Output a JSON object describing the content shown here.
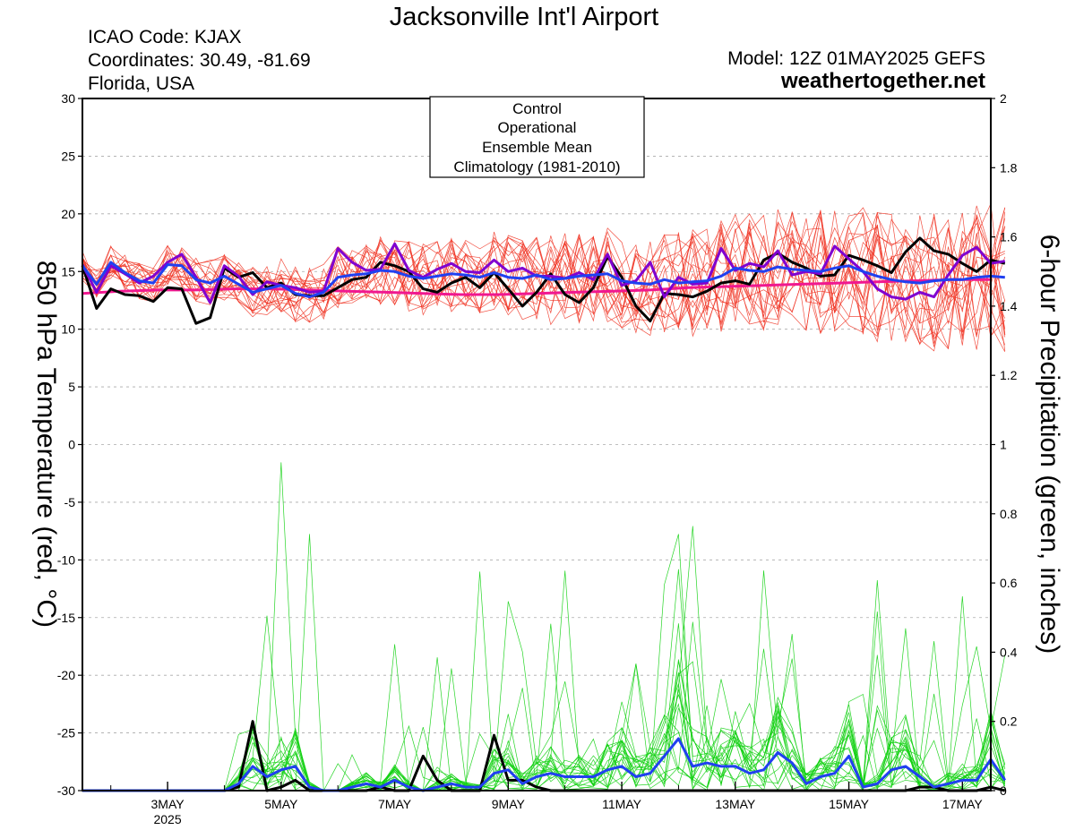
{
  "header": {
    "title": "Jacksonville Int'l Airport",
    "icao": "ICAO Code: KJAX",
    "coords": "Coordinates: 30.49, -81.69",
    "region": "Florida, USA",
    "model": "Model: 12Z 01MAY2025 GEFS",
    "site": "weathertogether.net"
  },
  "colors": {
    "control": "#000000",
    "operational": "#8000d0",
    "ensemble_mean": "#2040f0",
    "climatology": "#f01890",
    "members_temp": "#f03020",
    "members_precip": "#10d010",
    "site": "#1a9cf0"
  },
  "chart_data": {
    "type": "line",
    "title": "Jacksonville Int'l Airport",
    "ylabel": "850 hPa Temperature (red, °C)",
    "y2label": "6-hour Precipitation (green, inches)",
    "ylim": [
      -30,
      30
    ],
    "y2lim": [
      0,
      2
    ],
    "yticks": [
      30,
      25,
      20,
      15,
      10,
      5,
      0,
      -5,
      -10,
      -15,
      -20,
      -25,
      -30
    ],
    "y2ticks": [
      2,
      1.8,
      1.6,
      1.4,
      1.2,
      1,
      0.8,
      0.6,
      0.4,
      0.2,
      0
    ],
    "xlim": [
      1.5,
      17.5
    ],
    "xticks": [
      {
        "day": 3,
        "label": "3MAY",
        "sub": "2025"
      },
      {
        "day": 5,
        "label": "5MAY"
      },
      {
        "day": 7,
        "label": "7MAY"
      },
      {
        "day": 9,
        "label": "9MAY"
      },
      {
        "day": 11,
        "label": "11MAY"
      },
      {
        "day": 13,
        "label": "13MAY"
      },
      {
        "day": 15,
        "label": "15MAY"
      },
      {
        "day": 17,
        "label": "17MAY"
      }
    ],
    "grid": true,
    "legend": {
      "placement": "top-center",
      "entries": [
        "Control",
        "Operational",
        "Ensemble Mean",
        "Climatology (1981-2010)"
      ]
    },
    "x_start_day": 1.5,
    "x_step_days": 0.25,
    "series": [
      {
        "name": "Control",
        "axis": "temp",
        "values": [
          15.5,
          11.8,
          13.5,
          13.0,
          12.9,
          12.4,
          13.6,
          13.5,
          10.5,
          11.0,
          15.3,
          14.5,
          14.9,
          13.6,
          14.0,
          13.0,
          12.9,
          12.9,
          13.6,
          14.3,
          14.5,
          15.8,
          15.5,
          15.0,
          13.5,
          13.2,
          14.0,
          14.5,
          13.6,
          14.9,
          13.5,
          12.0,
          13.2,
          14.8,
          13.0,
          12.3,
          13.6,
          16.3,
          14.5,
          12.0,
          10.7,
          13.1,
          13.0,
          12.8,
          13.3,
          14.0,
          14.2,
          13.9,
          16.0,
          16.6,
          15.8,
          15.3,
          14.6,
          14.7,
          16.4,
          16.0,
          15.5,
          14.9,
          16.7,
          17.9,
          16.8,
          16.5,
          15.7,
          15.0,
          16.0,
          15.7
        ]
      },
      {
        "name": "Operational",
        "axis": "temp",
        "values": [
          15.6,
          13.2,
          15.5,
          14.8,
          14.0,
          14.6,
          15.8,
          16.5,
          14.5,
          12.3,
          15.5,
          14.6,
          13.0,
          14.1,
          13.8,
          13.6,
          13.2,
          13.3,
          17.0,
          15.8,
          15.1,
          15.2,
          17.4,
          15.1,
          14.5,
          15.2,
          15.7,
          15.0,
          14.9,
          16.0,
          15.0,
          15.3,
          14.6,
          14.6,
          14.4,
          14.9,
          14.3,
          16.5,
          13.8,
          14.2,
          15.8,
          12.8,
          14.5,
          13.9,
          14.0,
          17.0,
          15.1,
          15.7,
          15.4,
          16.8,
          14.7,
          15.0,
          14.8,
          17.2,
          16.1,
          15.0,
          13.5,
          12.8,
          12.6,
          13.2,
          12.8,
          14.7,
          16.4,
          17.1,
          15.7,
          15.9
        ]
      },
      {
        "name": "Ensemble Mean",
        "axis": "temp",
        "values": [
          15.5,
          13.9,
          15.8,
          14.9,
          14.2,
          14.0,
          15.6,
          15.5,
          14.3,
          14.0,
          14.6,
          13.9,
          13.2,
          13.5,
          13.8,
          13.1,
          12.8,
          13.2,
          14.5,
          14.7,
          14.8,
          15.1,
          15.0,
          14.6,
          14.4,
          14.6,
          14.8,
          14.7,
          14.5,
          14.9,
          14.5,
          14.4,
          14.7,
          14.3,
          14.4,
          14.6,
          14.7,
          14.8,
          14.2,
          14.0,
          13.9,
          14.3,
          14.0,
          14.1,
          14.2,
          14.6,
          15.3,
          15.1,
          15.0,
          15.4,
          15.2,
          15.1,
          15.0,
          15.3,
          15.5,
          15.0,
          14.6,
          14.3,
          14.1,
          14.0,
          14.2,
          14.3,
          14.3,
          14.5,
          14.6,
          14.5
        ]
      },
      {
        "name": "Climatology (1981-2010)",
        "axis": "temp",
        "values": [
          13.1,
          13.3,
          13.4,
          13.4,
          13.5,
          13.5,
          13.4,
          13.3,
          13.2,
          13.1,
          13.0,
          13.0,
          13.1,
          13.2,
          13.3,
          13.4,
          13.6,
          13.7,
          13.8,
          13.9,
          14.0,
          14.1,
          14.2,
          14.3,
          14.3
        ]
      },
      {
        "name": "Control",
        "axis": "precip",
        "values": [
          0,
          0,
          0,
          0,
          0,
          0,
          0,
          0,
          0,
          0,
          0,
          0.01,
          0.2,
          0,
          0.01,
          0.03,
          0,
          0,
          0,
          0,
          0,
          0.01,
          0,
          0,
          0.1,
          0.03,
          0,
          0,
          0,
          0.16,
          0.03,
          0.03,
          0.01,
          0,
          0,
          0,
          0,
          0,
          0,
          0,
          0,
          0,
          0,
          0,
          0,
          0,
          0,
          0,
          0,
          0,
          0,
          0,
          0,
          0,
          0,
          0,
          0,
          0,
          0,
          0.01,
          0.01,
          0,
          0,
          0,
          0.01,
          0
        ]
      },
      {
        "name": "Ensemble Mean",
        "axis": "precip",
        "values": [
          0,
          0,
          0,
          0,
          0,
          0,
          0,
          0,
          0,
          0,
          0,
          0.02,
          0.07,
          0.04,
          0.06,
          0.07,
          0.01,
          0,
          0,
          0.01,
          0.02,
          0.01,
          0.03,
          0.01,
          0,
          0.01,
          0.02,
          0.01,
          0.01,
          0.05,
          0.06,
          0.02,
          0.04,
          0.05,
          0.04,
          0.04,
          0.04,
          0.06,
          0.07,
          0.04,
          0.05,
          0.1,
          0.15,
          0.07,
          0.08,
          0.07,
          0.07,
          0.05,
          0.06,
          0.11,
          0.08,
          0.02,
          0.04,
          0.05,
          0.1,
          0.01,
          0.02,
          0.06,
          0.07,
          0.04,
          0.01,
          0.02,
          0.03,
          0.03,
          0.09,
          0.03
        ]
      }
    ]
  }
}
